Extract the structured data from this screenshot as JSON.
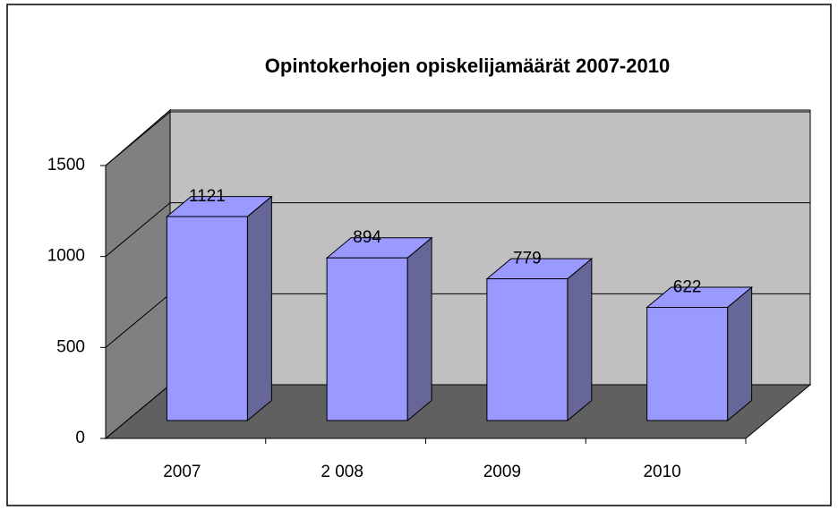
{
  "chart_data": {
    "type": "bar",
    "title": "Opintokerhojen opiskelijamäärät 2007-2010",
    "categories": [
      "2007",
      "2 008",
      "2009",
      "2010"
    ],
    "values": [
      1121,
      894,
      779,
      622
    ],
    "color": "#9999ff",
    "side_color": "#666699",
    "ylim": [
      0,
      1500
    ],
    "yticks": [
      0,
      500,
      1000,
      1500
    ],
    "grid": true
  }
}
